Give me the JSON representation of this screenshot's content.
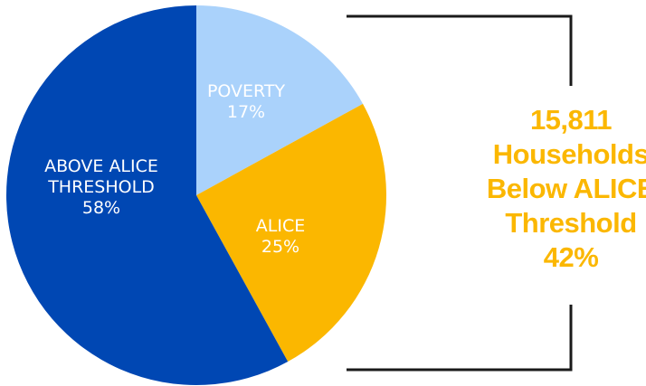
{
  "chart_data": {
    "type": "pie",
    "slices": [
      {
        "label_lines": [
          "POVERTY"
        ],
        "percent_label": "17%",
        "value": 17,
        "color": "#aad2fb",
        "text_color": "#ffffff"
      },
      {
        "label_lines": [
          "ALICE"
        ],
        "percent_label": "25%",
        "value": 25,
        "color": "#fbb700",
        "text_color": "#ffffff"
      },
      {
        "label_lines": [
          "ABOVE ALICE",
          "THRESHOLD"
        ],
        "percent_label": "58%",
        "value": 58,
        "color": "#0047b3",
        "text_color": "#ffffff"
      }
    ],
    "start": "12 o'clock",
    "direction": "clockwise"
  },
  "callout": {
    "lines": [
      "15,811",
      "Households",
      "Below ALICE",
      "Threshold",
      "42%"
    ],
    "color": "#fbb700",
    "bracket_color": "#1a1a1a"
  }
}
